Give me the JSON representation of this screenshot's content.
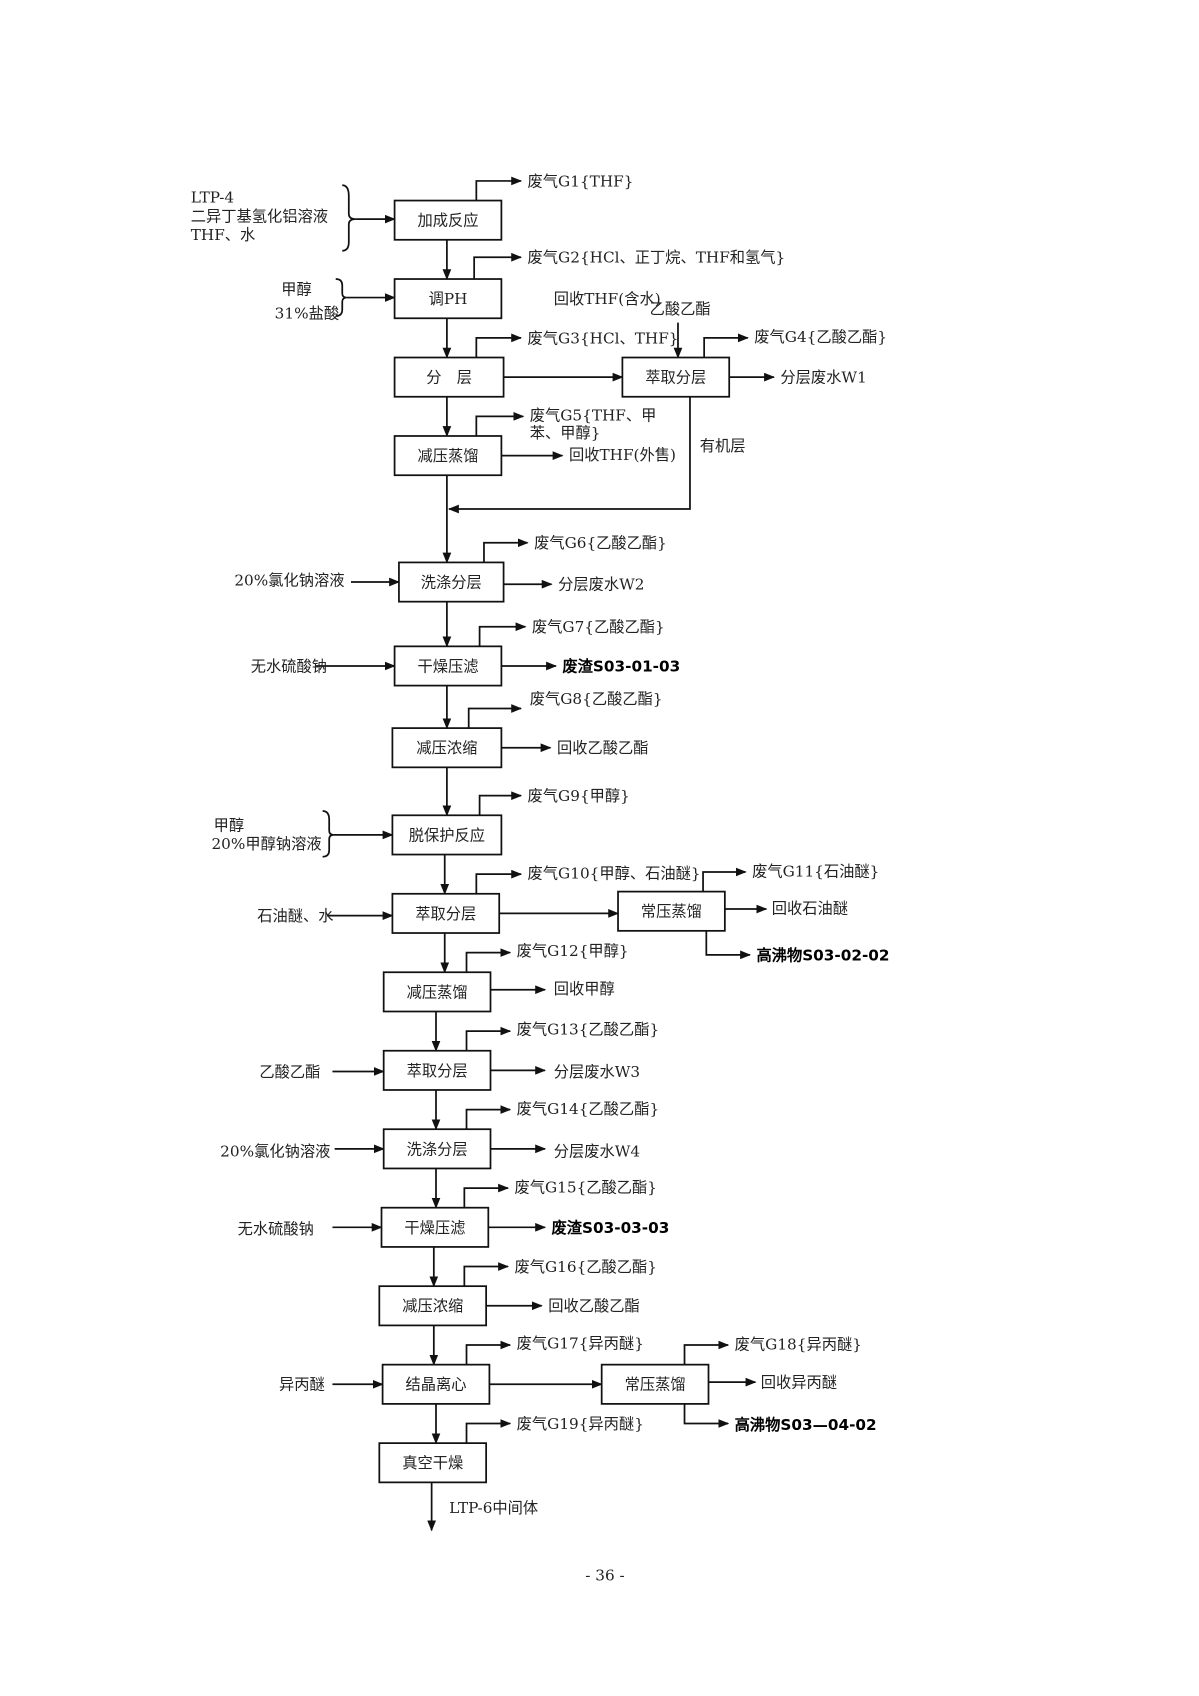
{
  "boxes": [
    "加成反应",
    "调PH",
    "分　层",
    "萃取分层",
    "减压蒸馏",
    "洗涤分层",
    "干燥压滤",
    "减压浓缩",
    "脱保护反应",
    "萃取分层",
    "常压蒸馏",
    "减压蒸馏",
    "萃取分层",
    "洗涤分层",
    "干燥压滤",
    "减压浓缩",
    "结晶离心",
    "常压蒸馏",
    "真空干燥"
  ],
  "inputs": {
    "ltp4": "LTP-4",
    "dibal": "二异丁基氢化铝溶液",
    "thf_water": "THF、水",
    "methanol": "甲醇",
    "hcl31": "31%盐酸",
    "recycled_thf": "回收THF(含水)",
    "ethyl_acetate_1": "乙酸乙酯",
    "nacl_1": "20%氯化钠溶液",
    "na2so4_1": "无水硫酸钠",
    "methanol_2": "甲醇",
    "naome": "20%甲醇钠溶液",
    "pe_water": "石油醚、水",
    "ethyl_acetate_2": "乙酸乙酯",
    "nacl_2": "20%氯化钠溶液",
    "na2so4_2": "无水硫酸钠",
    "ipe": "异丙醚"
  },
  "gases": {
    "g1": "废气G1{THF}",
    "g2": "废气G2{HCl、正丁烷、THF和氢气}",
    "g3": "废气G3{HCl、THF}",
    "g4": "废气G4{乙酸乙酯}",
    "g5_line1": "废气G5{THF、甲",
    "g5_line2": "苯、甲醇}",
    "g6": "废气G6{乙酸乙酯}",
    "g7": "废气G7{乙酸乙酯}",
    "g8": "废气G8{乙酸乙酯}",
    "g9": "废气G9{甲醇}",
    "g10": "废气G10{甲醇、石油醚}",
    "g11": "废气G11{石油醚}",
    "g12": "废气G12{甲醇}",
    "g13": "废气G13{乙酸乙酯}",
    "g14": "废气G14{乙酸乙酯}",
    "g15": "废气G15{乙酸乙酯}",
    "g16": "废气G16{乙酸乙酯}",
    "g17": "废气G17{异丙醚}",
    "g18": "废气G18{异丙醚}",
    "g19": "废气G19{异丙醚}"
  },
  "outputs": {
    "w1": "分层废水W1",
    "thf_sold": "回收THF(外售)",
    "organic_layer": "有机层",
    "w2": "分层废水W2",
    "s1": "废渣S03-01-03",
    "ea_recovered_1": "回收乙酸乙酯",
    "pe_recovered": "回收石油醚",
    "hb1": "高沸物S03-02-02",
    "meoh_recovered": "回收甲醇",
    "w3": "分层废水W3",
    "w4": "分层废水W4",
    "s2": "废渣S03-03-03",
    "ea_recovered_2": "回收乙酸乙酯",
    "ipe_recovered": "回收异丙醚",
    "hb2": "高沸物S03—04-02",
    "product": "LTP-6中间体"
  },
  "page_number": "- 36 -"
}
